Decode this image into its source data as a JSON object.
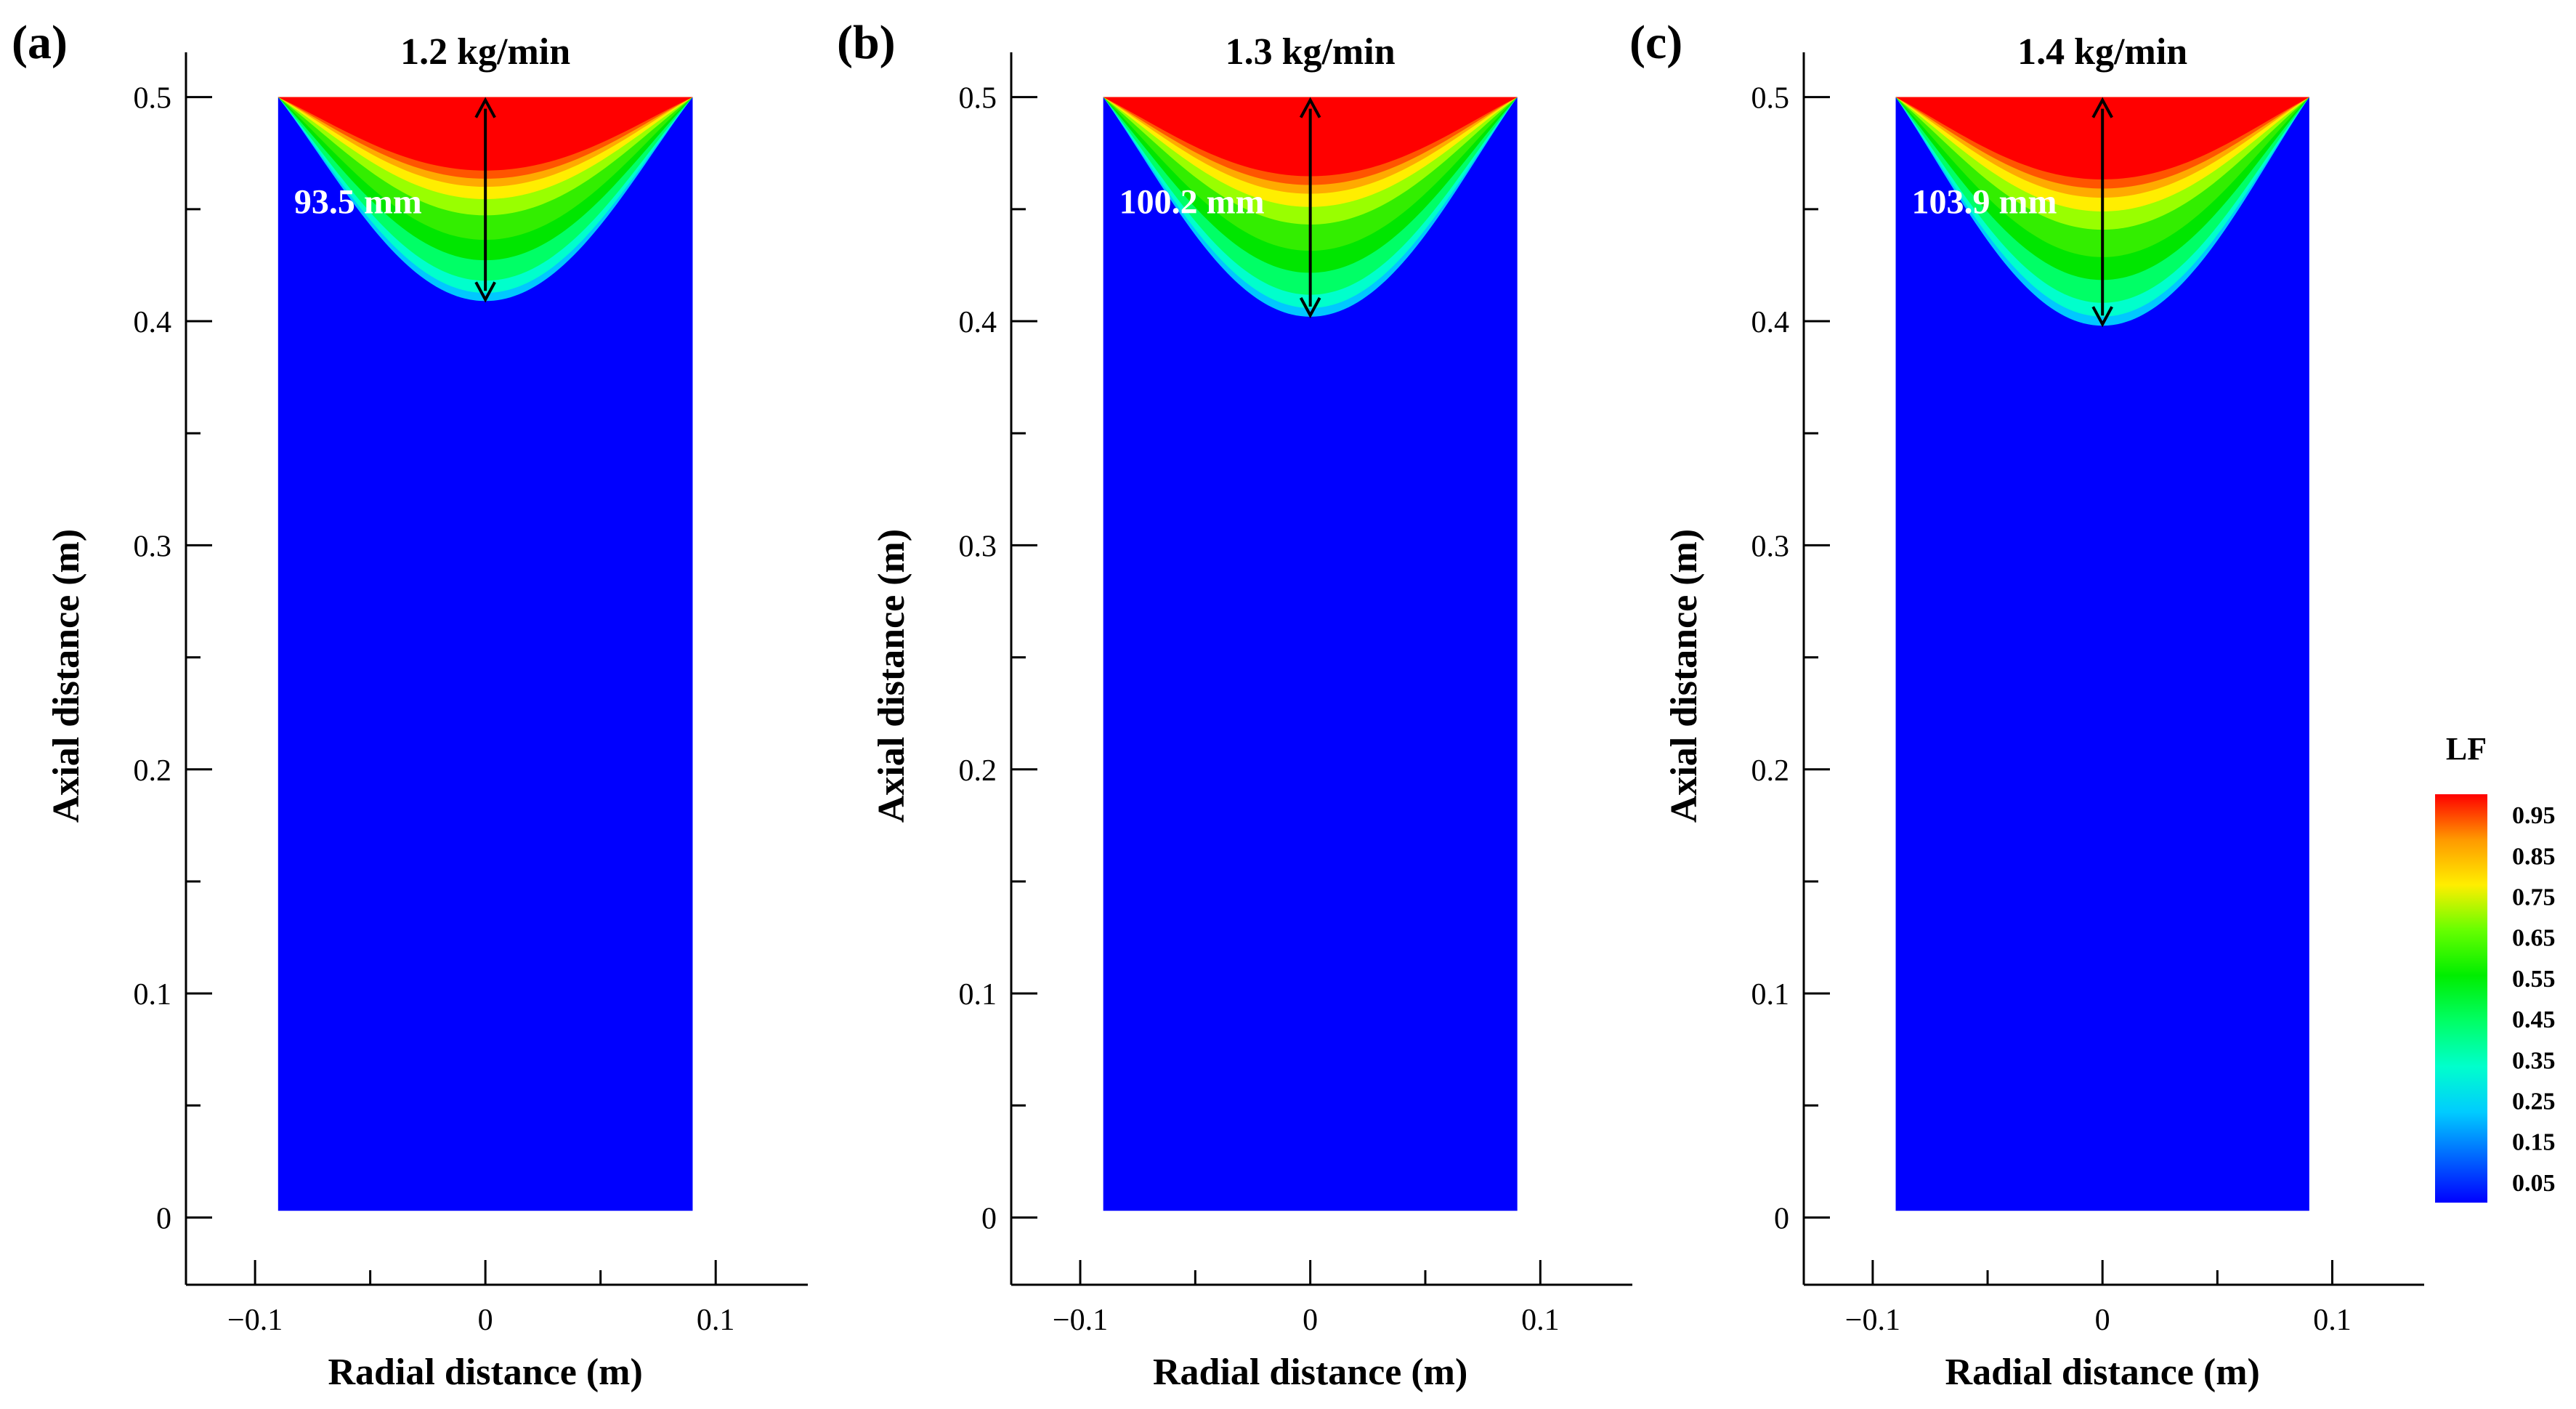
{
  "figure": {
    "colorbar": {
      "title": "LF",
      "levels": [
        "0.05",
        "0.15",
        "0.25",
        "0.35",
        "0.45",
        "0.55",
        "0.65",
        "0.75",
        "0.85",
        "0.95"
      ],
      "colors": [
        "#0000ff",
        "#0066ff",
        "#00ccff",
        "#00ffcc",
        "#00ff66",
        "#00ee00",
        "#66ff00",
        "#ffee00",
        "#ff9900",
        "#ff0000"
      ]
    }
  },
  "chart_data": [
    {
      "type": "heatmap",
      "panel_label": "(a)",
      "title": "1.2 kg/min",
      "xlabel": "Radial distance (m)",
      "ylabel": "Axial distance (m)",
      "xlim": [
        -0.13,
        0.14
      ],
      "ylim": [
        -0.03,
        0.52
      ],
      "x_ticks": [
        "−0.1",
        "0",
        "0.1"
      ],
      "y_ticks": [
        "0",
        "0.1",
        "0.2",
        "0.3",
        "0.4",
        "0.5"
      ],
      "domain": {
        "x": [
          -0.09,
          0.09
        ],
        "y": [
          0.003,
          0.5
        ]
      },
      "pool_bottom_y": 0.409,
      "pool_depth_label": "93.5 mm",
      "variable": "LF"
    },
    {
      "type": "heatmap",
      "panel_label": "(b)",
      "title": "1.3 kg/min",
      "xlabel": "Radial distance (m)",
      "ylabel": "Axial distance (m)",
      "xlim": [
        -0.13,
        0.14
      ],
      "ylim": [
        -0.03,
        0.52
      ],
      "x_ticks": [
        "−0.1",
        "0",
        "0.1"
      ],
      "y_ticks": [
        "0",
        "0.1",
        "0.2",
        "0.3",
        "0.4",
        "0.5"
      ],
      "domain": {
        "x": [
          -0.09,
          0.09
        ],
        "y": [
          0.003,
          0.5
        ]
      },
      "pool_bottom_y": 0.402,
      "pool_depth_label": "100.2 mm",
      "variable": "LF"
    },
    {
      "type": "heatmap",
      "panel_label": "(c)",
      "title": "1.4 kg/min",
      "xlabel": "Radial distance (m)",
      "ylabel": "Axial distance (m)",
      "xlim": [
        -0.13,
        0.14
      ],
      "ylim": [
        -0.03,
        0.52
      ],
      "x_ticks": [
        "−0.1",
        "0",
        "0.1"
      ],
      "y_ticks": [
        "0",
        "0.1",
        "0.2",
        "0.3",
        "0.4",
        "0.5"
      ],
      "domain": {
        "x": [
          -0.09,
          0.09
        ],
        "y": [
          0.003,
          0.5
        ]
      },
      "pool_bottom_y": 0.398,
      "pool_depth_label": "103.9 mm",
      "variable": "LF"
    }
  ]
}
